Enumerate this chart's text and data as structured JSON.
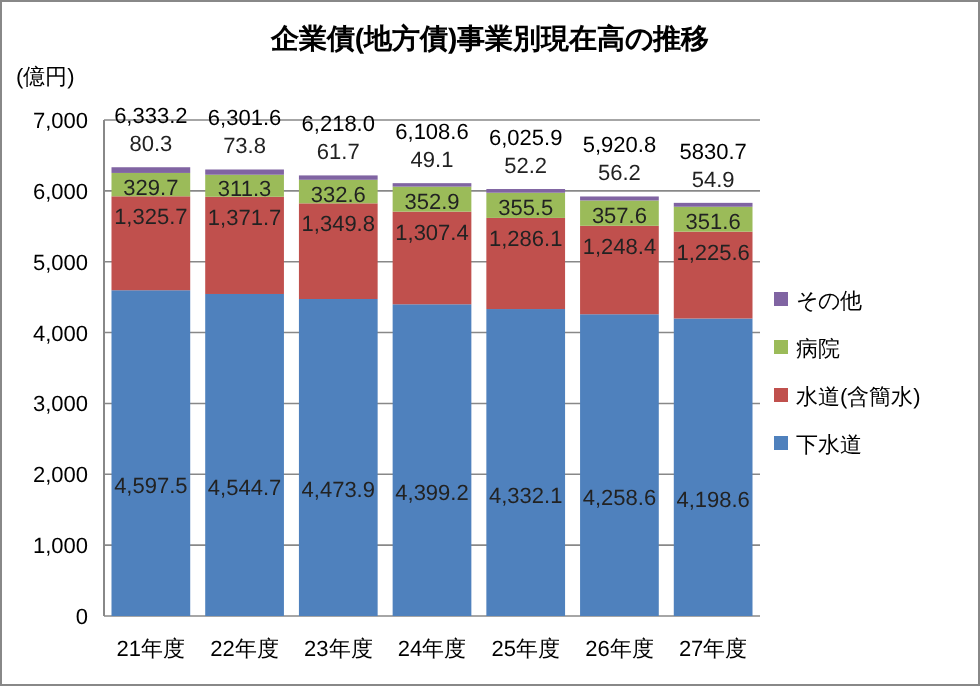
{
  "chart_data": {
    "type": "bar",
    "title": "企業債(地方債)事業別現在高の推移",
    "ylabel": "(億円)",
    "stacked": true,
    "categories": [
      "21年度",
      "22年度",
      "23年度",
      "24年度",
      "25年度",
      "26年度",
      "27年度"
    ],
    "series": [
      {
        "name": "下水道",
        "color": "#4f81bd",
        "values": [
          4597.5,
          4544.7,
          4473.9,
          4399.2,
          4332.1,
          4258.6,
          4198.6
        ],
        "value_labels": [
          "4,597.5",
          "4,544.7",
          "4,473.9",
          "4,399.2",
          "4,332.1",
          "4,258.6",
          "4,198.6"
        ]
      },
      {
        "name": "水道(含簡水)",
        "color": "#c0504d",
        "values": [
          1325.7,
          1371.7,
          1349.8,
          1307.4,
          1286.1,
          1248.4,
          1225.6
        ],
        "value_labels": [
          "1,325.7",
          "1,371.7",
          "1,349.8",
          "1,307.4",
          "1,286.1",
          "1,248.4",
          "1,225.6"
        ]
      },
      {
        "name": "病院",
        "color": "#9bbb59",
        "values": [
          329.7,
          311.3,
          332.6,
          352.9,
          355.5,
          357.6,
          351.6
        ],
        "value_labels": [
          "329.7",
          "311.3",
          "332.6",
          "352.9",
          "355.5",
          "357.6",
          "351.6"
        ]
      },
      {
        "name": "その他",
        "color": "#8064a2",
        "values": [
          80.3,
          73.8,
          61.7,
          49.1,
          52.2,
          56.2,
          54.9
        ],
        "value_labels": [
          "80.3",
          "73.8",
          "61.7",
          "49.1",
          "52.2",
          "56.2",
          "54.9"
        ]
      }
    ],
    "totals": [
      "6,333.2",
      "6,301.6",
      "6,218.0",
      "6,108.6",
      "6,025.9",
      "5,920.8",
      "5830.7"
    ],
    "ylim": [
      0,
      7000
    ],
    "yticks": [
      {
        "value": 0,
        "label": "0"
      },
      {
        "value": 1000,
        "label": "1,000"
      },
      {
        "value": 2000,
        "label": "2,000"
      },
      {
        "value": 3000,
        "label": "3,000"
      },
      {
        "value": 4000,
        "label": "4,000"
      },
      {
        "value": 5000,
        "label": "5,000"
      },
      {
        "value": 6000,
        "label": "6,000"
      },
      {
        "value": 7000,
        "label": "7,000"
      }
    ],
    "grid": "y",
    "legend": "right"
  }
}
